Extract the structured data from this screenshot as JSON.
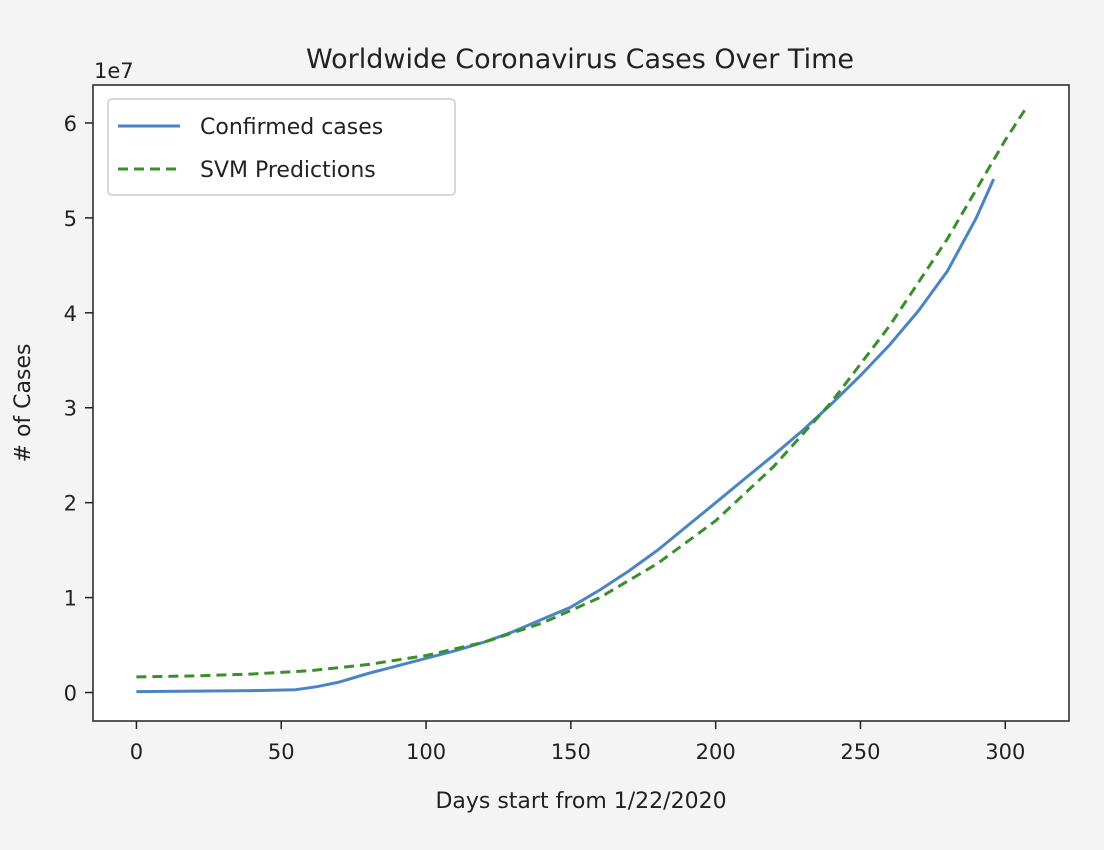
{
  "chart_data": {
    "type": "line",
    "title": "Worldwide Coronavirus Cases Over Time",
    "xlabel": "Days start from 1/22/2020",
    "ylabel": "# of Cases",
    "y_offset_label": "1e7",
    "xlim": [
      -15,
      322
    ],
    "ylim": [
      -3000000,
      64000000
    ],
    "xticks": [
      0,
      50,
      100,
      150,
      200,
      250,
      300
    ],
    "yticks": [
      0,
      10000000,
      20000000,
      30000000,
      40000000,
      50000000,
      60000000
    ],
    "yticklabels": [
      "0",
      "1",
      "2",
      "3",
      "4",
      "5",
      "6"
    ],
    "grid": false,
    "legend_position": "top-left",
    "colors": {
      "confirmed": "#4a84c4",
      "svm": "#3a8f2a"
    },
    "series": [
      {
        "name": "Confirmed cases",
        "style": "solid",
        "x": [
          0,
          20,
          40,
          55,
          62,
          70,
          80,
          90,
          100,
          110,
          120,
          130,
          140,
          150,
          160,
          170,
          180,
          190,
          200,
          210,
          220,
          230,
          240,
          250,
          260,
          270,
          280,
          290,
          296
        ],
        "y": [
          100000,
          150000,
          200000,
          300000,
          600000,
          1100000,
          2000000,
          2800000,
          3600000,
          4400000,
          5300000,
          6400000,
          7700000,
          9000000,
          10800000,
          12800000,
          15000000,
          17500000,
          20000000,
          22500000,
          25000000,
          27600000,
          30400000,
          33400000,
          36600000,
          40200000,
          44400000,
          50000000,
          54100000
        ]
      },
      {
        "name": "SVM Predictions",
        "style": "dashed",
        "x": [
          0,
          20,
          40,
          60,
          80,
          100,
          120,
          140,
          160,
          180,
          200,
          220,
          240,
          260,
          280,
          300,
          307
        ],
        "y": [
          1650000,
          1750000,
          1950000,
          2300000,
          2950000,
          3900000,
          5300000,
          7300000,
          10000000,
          13600000,
          18100000,
          23800000,
          30600000,
          38600000,
          47800000,
          58200000,
          61500000
        ]
      }
    ]
  }
}
